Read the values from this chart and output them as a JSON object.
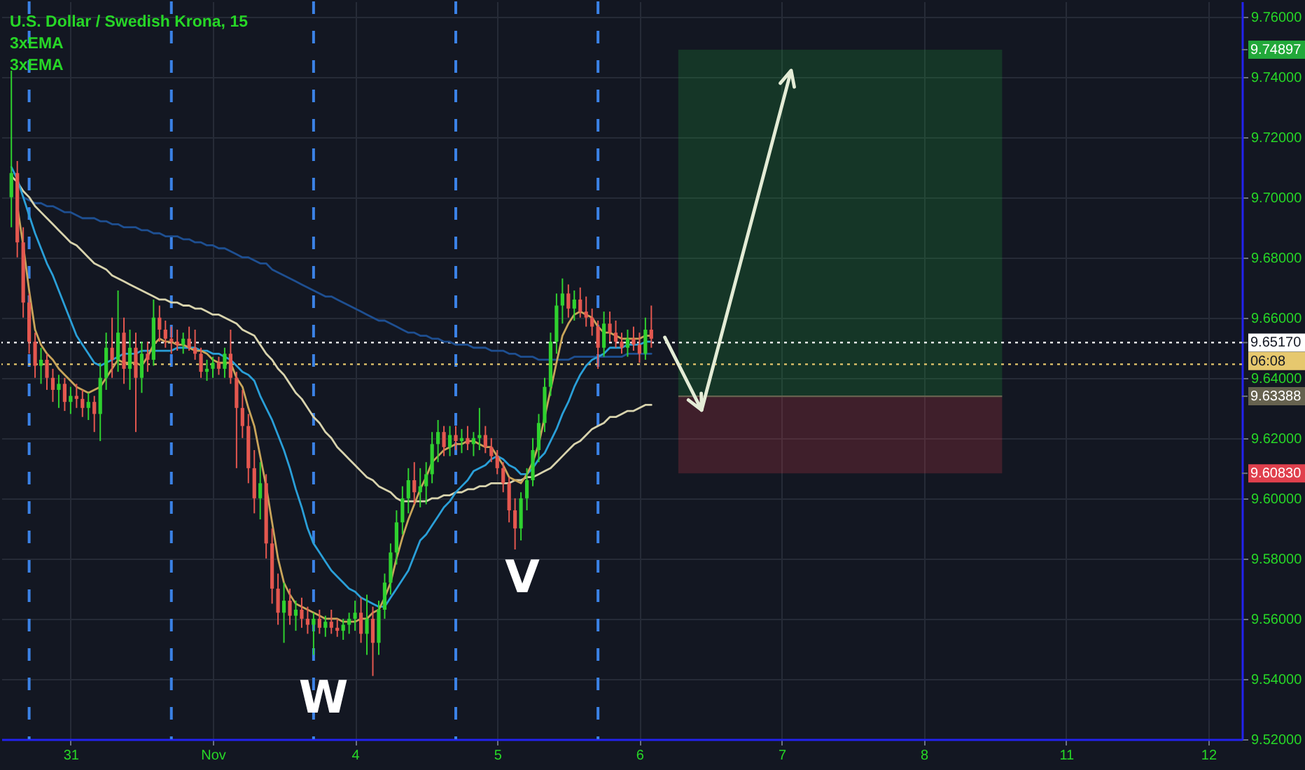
{
  "chart_data": {
    "type": "candlestick",
    "title": "U.S. Dollar / Swedish Krona, 15",
    "annotations": [
      "3xEMA",
      "3xEMA",
      "W",
      "V",
      "06:08"
    ],
    "categories": [
      null,
      null,
      null,
      null,
      null,
      null,
      null,
      null,
      null,
      null,
      "31",
      null,
      null,
      null,
      null,
      null,
      null,
      null,
      null,
      null,
      null,
      null,
      null,
      null,
      null,
      null,
      null,
      null,
      null,
      null,
      null,
      null,
      null,
      null,
      "Nov",
      null,
      null,
      null,
      null,
      null,
      null,
      null,
      null,
      null,
      null,
      null,
      null,
      null,
      null,
      null,
      null,
      null,
      null,
      null,
      null,
      null,
      null,
      null,
      "4",
      null,
      null,
      null,
      null,
      null,
      null,
      null,
      null,
      null,
      null,
      null,
      null,
      null,
      null,
      null,
      null,
      null,
      null,
      null,
      null,
      null,
      null,
      null,
      "5",
      null,
      null,
      null,
      null,
      null,
      null,
      null,
      null,
      null,
      null,
      null,
      null,
      null,
      null,
      null,
      null,
      null,
      null,
      null,
      null,
      null,
      null,
      null,
      "6",
      null,
      null,
      null,
      null,
      null,
      null,
      null,
      null,
      null,
      null,
      null,
      null,
      null,
      null,
      null,
      null,
      null,
      null,
      null,
      null,
      null,
      null,
      null,
      "7",
      null,
      null,
      null,
      null,
      null,
      null,
      null,
      null,
      null,
      null,
      null,
      null,
      null,
      null,
      null,
      null,
      null,
      null,
      null,
      null,
      null,
      null,
      null,
      "8",
      null,
      null,
      null,
      null,
      null,
      null,
      null,
      null,
      null,
      null,
      null,
      null,
      null,
      null,
      null,
      null,
      null,
      null,
      null,
      null,
      null,
      null,
      null,
      "11",
      null,
      null,
      null,
      null,
      null,
      null,
      null,
      null,
      null,
      null,
      null,
      null,
      null,
      null,
      null,
      null,
      null,
      null,
      null,
      null,
      null,
      null,
      null,
      "12",
      null,
      null,
      null,
      null
    ],
    "ohlc": [
      [
        9.7,
        9.742,
        9.69,
        9.708
      ],
      [
        9.708,
        9.712,
        9.68,
        9.685
      ],
      [
        9.685,
        9.69,
        9.66,
        9.665
      ],
      [
        9.665,
        9.668,
        9.648,
        9.652
      ],
      [
        9.652,
        9.655,
        9.64,
        9.644
      ],
      [
        9.644,
        9.65,
        9.638,
        9.646
      ],
      [
        9.646,
        9.648,
        9.636,
        9.64
      ],
      [
        9.64,
        9.643,
        9.632,
        9.636
      ],
      [
        9.636,
        9.641,
        9.63,
        9.638
      ],
      [
        9.638,
        9.64,
        9.629,
        9.632
      ],
      [
        9.632,
        9.637,
        9.628,
        9.634
      ],
      [
        9.634,
        9.638,
        9.63,
        9.633
      ],
      [
        9.633,
        9.636,
        9.627,
        9.63
      ],
      [
        9.63,
        9.635,
        9.626,
        9.632
      ],
      [
        9.632,
        9.634,
        9.622,
        9.628
      ],
      [
        9.628,
        9.645,
        9.619,
        9.64
      ],
      [
        9.64,
        9.655,
        9.636,
        9.65
      ],
      [
        9.65,
        9.66,
        9.64,
        9.646
      ],
      [
        9.646,
        9.669,
        9.642,
        9.655
      ],
      [
        9.655,
        9.66,
        9.638,
        9.643
      ],
      [
        9.643,
        9.656,
        9.636,
        9.65
      ],
      [
        9.65,
        9.655,
        9.622,
        9.64
      ],
      [
        9.64,
        9.652,
        9.635,
        9.648
      ],
      [
        9.648,
        9.652,
        9.642,
        9.646
      ],
      [
        9.646,
        9.666,
        9.644,
        9.66
      ],
      [
        9.66,
        9.664,
        9.652,
        9.656
      ],
      [
        9.656,
        9.659,
        9.65,
        9.653
      ],
      [
        9.653,
        9.657,
        9.648,
        9.652
      ],
      [
        9.652,
        9.656,
        9.649,
        9.651
      ],
      [
        9.651,
        9.655,
        9.648,
        9.653
      ],
      [
        9.653,
        9.657,
        9.649,
        9.65
      ],
      [
        9.65,
        9.656,
        9.646,
        9.648
      ],
      [
        9.648,
        9.65,
        9.64,
        9.642
      ],
      [
        9.642,
        9.646,
        9.639,
        9.643
      ],
      [
        9.643,
        9.647,
        9.64,
        9.645
      ],
      [
        9.645,
        9.647,
        9.641,
        9.643
      ],
      [
        9.643,
        9.65,
        9.64,
        9.648
      ],
      [
        9.648,
        9.656,
        9.638,
        9.64
      ],
      [
        9.64,
        9.642,
        9.61,
        9.63
      ],
      [
        9.63,
        9.636,
        9.62,
        9.624
      ],
      [
        9.624,
        9.628,
        9.605,
        9.61
      ],
      [
        9.61,
        9.616,
        9.595,
        9.6
      ],
      [
        9.6,
        9.612,
        9.593,
        9.605
      ],
      [
        9.605,
        9.608,
        9.58,
        9.585
      ],
      [
        9.585,
        9.59,
        9.565,
        9.57
      ],
      [
        9.57,
        9.575,
        9.558,
        9.562
      ],
      [
        9.562,
        9.572,
        9.552,
        9.566
      ],
      [
        9.566,
        9.57,
        9.558,
        9.561
      ],
      [
        9.561,
        9.566,
        9.556,
        9.563
      ],
      [
        9.563,
        9.567,
        9.557,
        9.56
      ],
      [
        9.56,
        9.564,
        9.555,
        9.558
      ],
      [
        9.558,
        9.562,
        9.548,
        9.56
      ],
      [
        9.56,
        9.563,
        9.555,
        9.557
      ],
      [
        9.557,
        9.561,
        9.554,
        9.559
      ],
      [
        9.559,
        9.563,
        9.555,
        9.557
      ],
      [
        9.557,
        9.56,
        9.554,
        9.556
      ],
      [
        9.556,
        9.56,
        9.553,
        9.558
      ],
      [
        9.558,
        9.562,
        9.555,
        9.56
      ],
      [
        9.56,
        9.566,
        9.556,
        9.562
      ],
      [
        9.562,
        9.567,
        9.552,
        9.555
      ],
      [
        9.555,
        9.568,
        9.548,
        9.56
      ],
      [
        9.56,
        9.564,
        9.541,
        9.552
      ],
      [
        9.552,
        9.566,
        9.548,
        9.563
      ],
      [
        9.563,
        9.575,
        9.56,
        9.572
      ],
      [
        9.572,
        9.585,
        9.568,
        9.582
      ],
      [
        9.582,
        9.596,
        9.578,
        9.592
      ],
      [
        9.592,
        9.604,
        9.588,
        9.6
      ],
      [
        9.6,
        9.61,
        9.595,
        9.606
      ],
      [
        9.606,
        9.612,
        9.598,
        9.602
      ],
      [
        9.602,
        9.61,
        9.597,
        9.604
      ],
      [
        9.604,
        9.612,
        9.598,
        9.608
      ],
      [
        9.608,
        9.622,
        9.605,
        9.618
      ],
      [
        9.618,
        9.626,
        9.612,
        9.622
      ],
      [
        9.622,
        9.624,
        9.614,
        9.617
      ],
      [
        9.617,
        9.624,
        9.614,
        9.621
      ],
      [
        9.621,
        9.624,
        9.616,
        9.619
      ],
      [
        9.619,
        9.623,
        9.615,
        9.62
      ],
      [
        9.62,
        9.624,
        9.616,
        9.618
      ],
      [
        9.618,
        9.622,
        9.614,
        9.62
      ],
      [
        9.62,
        9.63,
        9.616,
        9.621
      ],
      [
        9.621,
        9.624,
        9.615,
        9.617
      ],
      [
        9.617,
        9.62,
        9.612,
        9.614
      ],
      [
        9.614,
        9.616,
        9.608,
        9.61
      ],
      [
        9.61,
        9.612,
        9.602,
        9.605
      ],
      [
        9.605,
        9.607,
        9.592,
        9.596
      ],
      [
        9.596,
        9.6,
        9.583,
        9.59
      ],
      [
        9.59,
        9.602,
        9.586,
        9.6
      ],
      [
        9.6,
        9.61,
        9.596,
        9.606
      ],
      [
        9.606,
        9.62,
        9.604,
        9.616
      ],
      [
        9.616,
        9.628,
        9.612,
        9.625
      ],
      [
        9.625,
        9.64,
        9.622,
        9.637
      ],
      [
        9.637,
        9.655,
        9.634,
        9.652
      ],
      [
        9.652,
        9.668,
        9.648,
        9.664
      ],
      [
        9.664,
        9.673,
        9.658,
        9.668
      ],
      [
        9.668,
        9.671,
        9.66,
        9.663
      ],
      [
        9.663,
        9.669,
        9.659,
        9.666
      ],
      [
        9.666,
        9.67,
        9.66,
        9.662
      ],
      [
        9.662,
        9.667,
        9.657,
        9.66
      ],
      [
        9.66,
        9.663,
        9.654,
        9.657
      ],
      [
        9.657,
        9.659,
        9.643,
        9.65
      ],
      [
        9.65,
        9.662,
        9.647,
        9.658
      ],
      [
        9.658,
        9.662,
        9.652,
        9.655
      ],
      [
        9.655,
        9.659,
        9.65,
        9.652
      ],
      [
        9.652,
        9.655,
        9.648,
        9.65
      ],
      [
        9.65,
        9.656,
        9.647,
        9.653
      ],
      [
        9.653,
        9.657,
        9.649,
        9.651
      ],
      [
        9.651,
        9.655,
        9.645,
        9.648
      ],
      [
        9.648,
        9.66,
        9.646,
        9.656
      ],
      [
        9.656,
        9.664,
        9.65,
        9.653
      ],
      null,
      null,
      null,
      null,
      null,
      null,
      null,
      null,
      null,
      null,
      null,
      null,
      null,
      null,
      null,
      null,
      null,
      null,
      null,
      null,
      null,
      null,
      null,
      null,
      null,
      null,
      null,
      null,
      null,
      null,
      null,
      null,
      null,
      null,
      null,
      null,
      null,
      null,
      null,
      null,
      null,
      null,
      null,
      null,
      null,
      null,
      null,
      null,
      null,
      null,
      null,
      null,
      null,
      null,
      null,
      null,
      null,
      null,
      null,
      null,
      null,
      null,
      null,
      null,
      null,
      null,
      null,
      null,
      null,
      null,
      null,
      null,
      null,
      null,
      null,
      null,
      null,
      null,
      null,
      null,
      null,
      null,
      null,
      null,
      null,
      null,
      null,
      null,
      null,
      null,
      null,
      null,
      null,
      null,
      null,
      null,
      null,
      null
    ],
    "colors": [
      "#2fd12f",
      "#e4574f",
      "#e4574f",
      "#e4574f",
      "#e4574f",
      "#2fd12f",
      "#e4574f",
      "#e4574f",
      "#2fd12f",
      "#e4574f",
      "#2fd12f",
      "#e4574f",
      "#e4574f",
      "#2fd12f",
      "#e4574f",
      "#2fd12f",
      "#2fd12f",
      "#e4574f",
      "#2fd12f",
      "#e4574f",
      "#2fd12f",
      "#e4574f",
      "#2fd12f",
      "#e4574f",
      "#2fd12f",
      "#e4574f",
      "#e4574f",
      "#e4574f",
      "#e4574f",
      "#2fd12f",
      "#e4574f",
      "#e4574f",
      "#e4574f",
      "#2fd12f",
      "#2fd12f",
      "#e4574f",
      "#2fd12f",
      "#e4574f",
      "#e4574f",
      "#e4574f",
      "#e4574f",
      "#e4574f",
      "#2fd12f",
      "#e4574f",
      "#e4574f",
      "#e4574f",
      "#2fd12f",
      "#e4574f",
      "#2fd12f",
      "#e4574f",
      "#e4574f",
      "#2fd12f",
      "#e4574f",
      "#2fd12f",
      "#e4574f",
      "#e4574f",
      "#2fd12f",
      "#2fd12f",
      "#2fd12f",
      "#e4574f",
      "#2fd12f",
      "#e4574f",
      "#2fd12f",
      "#2fd12f",
      "#2fd12f",
      "#2fd12f",
      "#2fd12f",
      "#2fd12f",
      "#e4574f",
      "#2fd12f",
      "#2fd12f",
      "#2fd12f",
      "#2fd12f",
      "#e4574f",
      "#2fd12f",
      "#e4574f",
      "#2fd12f",
      "#e4574f",
      "#2fd12f",
      "#2fd12f",
      "#e4574f",
      "#e4574f",
      "#e4574f",
      "#e4574f",
      "#e4574f",
      "#e4574f",
      "#2fd12f",
      "#2fd12f",
      "#2fd12f",
      "#2fd12f",
      "#2fd12f",
      "#2fd12f",
      "#2fd12f",
      "#2fd12f",
      "#e4574f",
      "#2fd12f",
      "#e4574f",
      "#e4574f",
      "#e4574f",
      "#e4574f",
      "#2fd12f",
      "#e4574f",
      "#e4574f",
      "#e4574f",
      "#2fd12f",
      "#e4574f",
      "#e4574f",
      "#2fd12f",
      "#e4574f",
      null,
      null,
      null,
      null,
      null,
      null,
      null,
      null,
      null,
      null,
      null,
      null,
      null,
      null,
      null,
      null,
      null,
      null,
      null,
      null,
      null,
      null,
      null,
      null,
      null,
      null,
      null,
      null,
      null,
      null,
      null,
      null,
      null,
      null,
      null,
      null,
      null,
      null,
      null,
      null,
      null,
      null,
      null,
      null,
      null,
      null,
      null,
      null,
      null,
      null,
      null,
      null,
      null,
      null,
      null,
      null,
      null,
      null,
      null,
      null,
      null,
      null,
      null,
      null,
      null,
      null,
      null,
      null,
      null,
      null,
      null,
      null,
      null,
      null,
      null,
      null,
      null,
      null,
      null,
      null,
      null,
      null,
      null,
      null,
      null,
      null,
      null,
      null,
      null,
      null,
      null,
      null,
      null,
      null,
      null,
      null,
      null,
      null
    ],
    "series": [
      {
        "type": "line",
        "color": "#1e4f91",
        "values": [
          null,
          null,
          9.7,
          9.699,
          9.698,
          9.698,
          9.697,
          9.697,
          9.696,
          9.695,
          9.695,
          9.694,
          9.693,
          9.693,
          9.693,
          9.692,
          9.692,
          9.691,
          9.691,
          9.69,
          9.69,
          9.69,
          9.689,
          9.689,
          9.688,
          9.688,
          9.687,
          9.687,
          9.687,
          9.686,
          9.686,
          9.685,
          9.685,
          9.684,
          9.684,
          9.683,
          9.683,
          9.682,
          9.681,
          9.68,
          9.68,
          9.679,
          9.678,
          9.678,
          9.676,
          9.675,
          9.674,
          9.673,
          9.672,
          9.671,
          9.67,
          9.669,
          9.668,
          9.667,
          9.667,
          9.666,
          9.665,
          9.664,
          9.663,
          9.662,
          9.661,
          9.66,
          9.659,
          9.659,
          9.658,
          9.657,
          9.656,
          9.655,
          9.655,
          9.654,
          9.654,
          9.653,
          9.653,
          9.652,
          9.652,
          9.651,
          9.651,
          9.651,
          9.65,
          9.65,
          9.65,
          9.649,
          9.649,
          9.649,
          9.648,
          9.648,
          9.647,
          9.647,
          9.647,
          9.646,
          9.646,
          9.646,
          9.646,
          9.646,
          9.646,
          9.647,
          9.647,
          9.647,
          9.647,
          9.647,
          9.647,
          9.647,
          9.647,
          9.647,
          9.648,
          9.648,
          9.648,
          9.648,
          9.648,
          null,
          null,
          null,
          null,
          null,
          null,
          null,
          null,
          null,
          null,
          null,
          null,
          null,
          null,
          null,
          null,
          null,
          null,
          null,
          null,
          null,
          null,
          null,
          null,
          null,
          null,
          null,
          null,
          null,
          null,
          null,
          null,
          null,
          null,
          null,
          null,
          null,
          null,
          null,
          null,
          null,
          null,
          null,
          null,
          null,
          null,
          null,
          null,
          null,
          null,
          null,
          null,
          null,
          null,
          null,
          null,
          null,
          null,
          null,
          null,
          null,
          null,
          null,
          null,
          null,
          null,
          null,
          null,
          null,
          null,
          null,
          null,
          null,
          null,
          null,
          null,
          null,
          null,
          null,
          null,
          null,
          null,
          null,
          null,
          null,
          null,
          null,
          null,
          null,
          null,
          null,
          null,
          null,
          null,
          null,
          null,
          null,
          null
        ]
      },
      {
        "type": "line",
        "color": "#d8d3ad",
        "values": [
          9.707,
          9.705,
          9.702,
          9.7,
          9.697,
          9.695,
          9.693,
          9.691,
          9.689,
          9.687,
          9.685,
          9.684,
          9.682,
          9.68,
          9.678,
          9.677,
          9.676,
          9.674,
          9.673,
          9.672,
          9.671,
          9.67,
          9.669,
          9.668,
          9.667,
          9.666,
          9.666,
          9.665,
          9.665,
          9.664,
          9.664,
          9.663,
          9.663,
          9.662,
          9.661,
          9.661,
          9.66,
          9.659,
          9.658,
          9.656,
          9.655,
          9.654,
          9.651,
          9.648,
          9.646,
          9.643,
          9.641,
          9.638,
          9.635,
          9.633,
          9.63,
          9.627,
          9.625,
          9.622,
          9.62,
          9.617,
          9.615,
          9.613,
          9.611,
          9.609,
          9.607,
          9.606,
          9.604,
          9.603,
          9.602,
          9.6,
          9.599,
          9.599,
          9.599,
          9.599,
          9.599,
          9.6,
          9.6,
          9.601,
          9.601,
          9.602,
          9.602,
          9.603,
          9.603,
          9.604,
          9.604,
          9.605,
          9.605,
          9.605,
          9.605,
          9.606,
          9.606,
          9.607,
          9.607,
          9.608,
          9.609,
          9.61,
          9.612,
          9.614,
          9.616,
          9.618,
          9.619,
          9.621,
          9.623,
          9.624,
          9.625,
          9.627,
          9.627,
          9.628,
          9.629,
          9.629,
          9.63,
          9.631,
          9.631,
          null,
          null,
          null,
          null,
          null,
          null,
          null,
          null,
          null,
          null,
          null,
          null,
          null,
          null,
          null,
          null,
          null,
          null,
          null,
          null,
          null,
          null,
          null,
          null,
          null,
          null,
          null,
          null,
          null,
          null,
          null,
          null,
          null,
          null,
          null,
          null,
          null,
          null,
          null,
          null,
          null,
          null,
          null,
          null,
          null,
          null,
          null,
          null,
          null,
          null,
          null,
          null,
          null,
          null,
          null,
          null,
          null,
          null,
          null,
          null,
          null,
          null,
          null,
          null,
          null,
          null,
          null,
          null,
          null,
          null,
          null,
          null,
          null,
          null,
          null,
          null,
          null,
          null,
          null,
          null,
          null,
          null,
          null,
          null,
          null,
          null,
          null,
          null,
          null,
          null,
          null,
          null,
          null,
          null,
          null,
          null,
          null,
          null
        ]
      },
      {
        "type": "line",
        "color": "#2a9fd8",
        "values": [
          9.71,
          9.706,
          9.7,
          9.694,
          9.688,
          9.683,
          9.678,
          9.674,
          9.669,
          9.664,
          9.659,
          9.654,
          9.651,
          9.648,
          9.645,
          9.644,
          9.645,
          9.646,
          9.647,
          9.648,
          9.648,
          9.648,
          9.649,
          9.649,
          9.649,
          9.649,
          9.649,
          9.649,
          9.65,
          9.65,
          9.65,
          9.65,
          9.649,
          9.649,
          9.648,
          9.648,
          9.647,
          9.646,
          9.644,
          9.642,
          9.641,
          9.639,
          9.634,
          9.63,
          9.626,
          9.621,
          9.616,
          9.61,
          9.603,
          9.597,
          9.59,
          9.585,
          9.582,
          9.579,
          9.576,
          9.574,
          9.572,
          9.57,
          9.569,
          9.567,
          9.566,
          9.565,
          9.564,
          9.564,
          9.567,
          9.57,
          9.573,
          9.576,
          9.581,
          9.586,
          9.588,
          9.591,
          9.594,
          9.597,
          9.599,
          9.602,
          9.604,
          9.606,
          9.609,
          9.61,
          9.611,
          9.613,
          9.614,
          9.613,
          9.611,
          9.61,
          9.608,
          9.608,
          9.61,
          9.613,
          9.615,
          9.619,
          9.623,
          9.628,
          9.632,
          9.637,
          9.641,
          9.644,
          9.646,
          9.647,
          9.648,
          9.65,
          9.65,
          9.65,
          9.651,
          9.651,
          9.651,
          9.652,
          9.652,
          null,
          null,
          null,
          null,
          null,
          null,
          null,
          null,
          null,
          null,
          null,
          null,
          null,
          null,
          null,
          null,
          null,
          null,
          null,
          null,
          null,
          null,
          null,
          null,
          null,
          null,
          null,
          null,
          null,
          null,
          null,
          null,
          null,
          null,
          null,
          null,
          null,
          null,
          null,
          null,
          null,
          null,
          null,
          null,
          null,
          null,
          null,
          null,
          null,
          null,
          null,
          null,
          null,
          null,
          null,
          null,
          null,
          null,
          null,
          null,
          null,
          null,
          null,
          null,
          null,
          null,
          null,
          null,
          null,
          null,
          null,
          null,
          null,
          null,
          null,
          null,
          null,
          null,
          null,
          null,
          null,
          null,
          null,
          null,
          null,
          null,
          null,
          null,
          null,
          null,
          null,
          null,
          null,
          null,
          null,
          null,
          null,
          null
        ]
      },
      {
        "type": "line",
        "color": "#c9a55a",
        "values": [
          null,
          9.697,
          9.684,
          9.669,
          9.656,
          9.651,
          9.648,
          9.646,
          9.643,
          9.641,
          9.639,
          9.637,
          9.636,
          9.635,
          9.636,
          9.637,
          9.64,
          9.643,
          9.646,
          9.645,
          9.645,
          9.645,
          9.644,
          9.647,
          9.651,
          9.653,
          9.652,
          9.652,
          9.651,
          9.651,
          9.65,
          9.649,
          9.649,
          9.648,
          9.646,
          9.645,
          9.645,
          9.645,
          9.64,
          9.637,
          9.63,
          9.624,
          9.614,
          9.604,
          9.592,
          9.58,
          9.572,
          9.568,
          9.565,
          9.564,
          9.563,
          9.562,
          9.561,
          9.56,
          9.56,
          9.56,
          9.559,
          9.559,
          9.559,
          9.56,
          9.56,
          9.562,
          9.563,
          9.567,
          9.572,
          9.58,
          9.587,
          9.593,
          9.598,
          9.603,
          9.607,
          9.612,
          9.614,
          9.616,
          9.617,
          9.618,
          9.618,
          9.619,
          9.619,
          9.618,
          9.617,
          9.617,
          9.614,
          9.611,
          9.607,
          9.606,
          9.605,
          9.608,
          9.612,
          9.618,
          9.627,
          9.636,
          9.645,
          9.654,
          9.658,
          9.661,
          9.662,
          9.661,
          9.66,
          9.657,
          9.655,
          9.655,
          9.654,
          9.653,
          9.653,
          9.653,
          9.653,
          9.654,
          9.654,
          null,
          null,
          null,
          null,
          null,
          null,
          null,
          null,
          null,
          null,
          null,
          null,
          null,
          null,
          null,
          null,
          null,
          null,
          null,
          null,
          null,
          null,
          null,
          null,
          null,
          null,
          null,
          null,
          null,
          null,
          null,
          null,
          null,
          null,
          null,
          null,
          null,
          null,
          null,
          null,
          null,
          null,
          null,
          null,
          null,
          null,
          null,
          null,
          null,
          null,
          null,
          null,
          null,
          null,
          null,
          null,
          null,
          null,
          null,
          null,
          null,
          null,
          null,
          null,
          null,
          null,
          null,
          null,
          null,
          null,
          null,
          null,
          null,
          null,
          null,
          null,
          null,
          null,
          null,
          null,
          null,
          null,
          null,
          null,
          null,
          null,
          null,
          null,
          null,
          null,
          null,
          null,
          null,
          null,
          null,
          null,
          null,
          null
        ]
      }
    ],
    "ylim": [
      9.52,
      9.765
    ],
    "yticks": [
      {
        "value": 9.52,
        "label": "9.52000"
      },
      {
        "value": 9.54,
        "label": "9.54000"
      },
      {
        "value": 9.56,
        "label": "9.56000"
      },
      {
        "value": 9.58,
        "label": "9.58000"
      },
      {
        "value": 9.6,
        "label": "9.60000"
      },
      {
        "value": 9.6083,
        "label": "9.60830"
      },
      {
        "value": 9.62,
        "label": "9.62000"
      },
      {
        "value": 9.63388,
        "label": "9.63388"
      },
      {
        "value": 9.64,
        "label": "9.64000"
      },
      {
        "value": 9.6517,
        "label": "9.65170"
      },
      {
        "value": 9.66,
        "label": "9.66000"
      },
      {
        "value": 9.68,
        "label": "9.68000"
      },
      {
        "value": 9.7,
        "label": "9.70000"
      },
      {
        "value": 9.72,
        "label": "9.72000"
      },
      {
        "value": 9.74,
        "label": "9.74000"
      },
      {
        "value": 9.74897,
        "label": "9.74897"
      },
      {
        "value": 9.76,
        "label": "9.76000"
      }
    ],
    "grid": true,
    "ref_lines": [
      {
        "axis": "y",
        "value": 9.6517,
        "color": "#ffffff",
        "line_style": "dotted"
      },
      {
        "axis": "y",
        "value": 9.6445,
        "color": "#e6c86e",
        "line_style": "dotted"
      },
      {
        "axis": "y",
        "value": 9.63388,
        "color": "#66624f",
        "line_style": "solid"
      }
    ],
    "bands": [
      {
        "axis": "y",
        "from": 9.63388,
        "to": 9.74897,
        "color": "#22a83a"
      },
      {
        "axis": "y",
        "from": 9.6083,
        "to": 9.63388,
        "color": "#e0404d"
      }
    ]
  }
}
